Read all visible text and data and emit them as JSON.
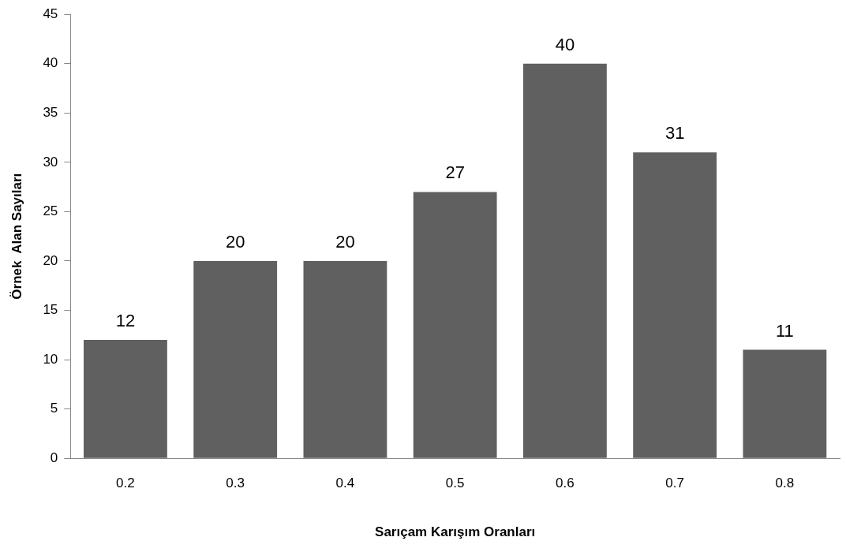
{
  "chart_data": {
    "type": "bar",
    "xlabel": "Sarıçam Karışım Oranları",
    "ylabel": "Örnek  Alan Sayıları",
    "categories": [
      "0.2",
      "0.3",
      "0.4",
      "0.5",
      "0.6",
      "0.7",
      "0.8"
    ],
    "values": [
      12,
      20,
      20,
      27,
      40,
      31,
      11
    ],
    "color": "#606060",
    "ylim": [
      0,
      45
    ],
    "yticks": [
      0,
      5,
      10,
      15,
      20,
      25,
      30,
      35,
      40,
      45
    ],
    "grid": false,
    "legend": false,
    "data_labels": true
  }
}
